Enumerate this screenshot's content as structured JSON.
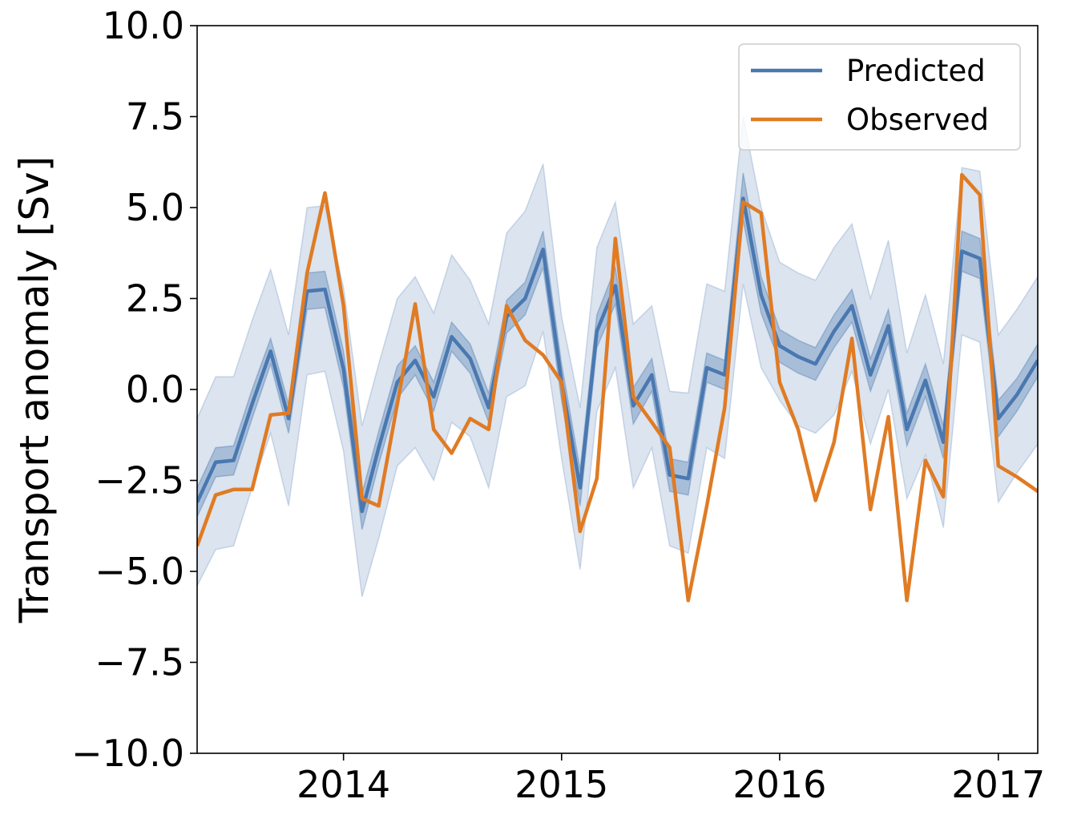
{
  "chart_data": {
    "type": "line",
    "title": "",
    "xlabel": "",
    "ylabel": "Transport anomaly [Sv]",
    "xlim": [
      "2013-05-01",
      "2017-03-08"
    ],
    "ylim": [
      -10,
      10
    ],
    "x_ticks": [
      "2014",
      "2015",
      "2016",
      "2017"
    ],
    "x_tick_dates": [
      "2014-01-01",
      "2015-01-01",
      "2016-01-01",
      "2017-01-01"
    ],
    "y_ticks": [
      10.0,
      7.5,
      5.0,
      2.5,
      0.0,
      -2.5,
      -5.0,
      -7.5,
      -10.0
    ],
    "y_tick_labels": [
      "10.0",
      "7.5",
      "5.0",
      "2.5",
      "0.0",
      "−2.5",
      "−5.0",
      "−7.5",
      "−10.0"
    ],
    "grid": false,
    "legend_position": "top-right",
    "x": [
      "2013-05-01",
      "2013-06-01",
      "2013-07-01",
      "2013-08-01",
      "2013-09-01",
      "2013-10-01",
      "2013-11-01",
      "2013-12-01",
      "2014-01-01",
      "2014-02-01",
      "2014-03-01",
      "2014-04-01",
      "2014-05-01",
      "2014-06-01",
      "2014-07-01",
      "2014-08-01",
      "2014-09-01",
      "2014-10-01",
      "2014-11-01",
      "2014-12-01",
      "2015-01-01",
      "2015-02-01",
      "2015-03-01",
      "2015-04-01",
      "2015-05-01",
      "2015-06-01",
      "2015-07-01",
      "2015-08-01",
      "2015-09-01",
      "2015-10-01",
      "2015-11-01",
      "2015-12-01",
      "2016-01-01",
      "2016-02-01",
      "2016-03-01",
      "2016-04-01",
      "2016-05-01",
      "2016-06-01",
      "2016-07-01",
      "2016-08-01",
      "2016-09-01",
      "2016-10-01",
      "2016-11-01",
      "2016-12-01",
      "2017-01-01",
      "2017-02-01",
      "2017-03-08"
    ],
    "series": [
      {
        "name": "Predicted",
        "color": "#4a78b0",
        "values": [
          -3.1,
          -2.0,
          -1.95,
          -0.4,
          1.05,
          -0.8,
          2.7,
          2.75,
          0.55,
          -3.35,
          -1.6,
          0.2,
          0.8,
          -0.2,
          1.45,
          0.85,
          -0.5,
          2.0,
          2.5,
          3.85,
          0.2,
          -2.7,
          1.6,
          2.85,
          -0.45,
          0.4,
          -2.35,
          -2.45,
          0.6,
          0.4,
          5.25,
          2.6,
          1.2,
          0.9,
          0.7,
          1.6,
          2.3,
          0.4,
          1.75,
          -1.1,
          0.25,
          -1.45,
          3.8,
          3.6,
          -0.8,
          -0.15,
          0.8
        ],
        "inner_band": {
          "lower": [
            -3.5,
            -2.4,
            -2.35,
            -0.8,
            0.7,
            -1.2,
            2.2,
            2.25,
            0.05,
            -3.85,
            -2.05,
            -0.25,
            0.4,
            -0.6,
            1.05,
            0.45,
            -0.9,
            1.55,
            2.05,
            3.35,
            -0.3,
            -3.2,
            1.15,
            2.35,
            -0.95,
            -0.05,
            -2.8,
            -2.9,
            0.2,
            0.0,
            4.65,
            2.1,
            0.75,
            0.45,
            0.25,
            1.15,
            1.85,
            -0.05,
            1.3,
            -1.55,
            -0.2,
            -1.9,
            3.25,
            3.05,
            -1.3,
            -0.6,
            0.35
          ],
          "upper": [
            -2.7,
            -1.6,
            -1.55,
            0.0,
            1.4,
            -0.4,
            3.2,
            3.25,
            1.05,
            -2.85,
            -1.15,
            0.65,
            1.2,
            0.2,
            1.85,
            1.25,
            -0.1,
            2.45,
            2.95,
            4.35,
            0.7,
            -2.2,
            2.05,
            3.35,
            0.05,
            0.85,
            -1.9,
            -2.0,
            1.0,
            0.8,
            5.95,
            3.1,
            1.65,
            1.35,
            1.15,
            2.05,
            2.75,
            0.85,
            2.2,
            -0.65,
            0.7,
            -1.0,
            4.35,
            4.15,
            -0.3,
            0.3,
            1.25
          ]
        },
        "outer_band": {
          "lower": [
            -5.4,
            -4.4,
            -4.3,
            -2.7,
            -1.2,
            -3.2,
            0.4,
            0.5,
            -1.7,
            -5.7,
            -4.1,
            -2.1,
            -1.6,
            -2.5,
            -0.9,
            -1.3,
            -2.7,
            -0.2,
            0.1,
            1.6,
            -1.9,
            -4.95,
            -0.6,
            0.6,
            -2.7,
            -1.6,
            -4.3,
            -4.5,
            -1.6,
            -1.9,
            2.9,
            0.6,
            -0.3,
            -1.0,
            -1.2,
            -0.7,
            0.5,
            -1.5,
            0.0,
            -3.0,
            -1.8,
            -3.8,
            1.5,
            1.3,
            -3.1,
            -2.3,
            -1.5
          ],
          "upper": [
            -0.8,
            0.35,
            0.35,
            1.9,
            3.3,
            1.5,
            5.0,
            5.05,
            2.8,
            -1.0,
            0.7,
            2.5,
            3.1,
            2.1,
            3.7,
            3.0,
            1.8,
            4.3,
            4.9,
            6.2,
            2.0,
            -0.5,
            3.9,
            5.15,
            1.8,
            2.3,
            -0.05,
            -0.1,
            2.9,
            2.7,
            7.5,
            5.0,
            3.5,
            3.2,
            3.0,
            3.9,
            4.55,
            2.5,
            4.1,
            1.0,
            2.6,
            0.7,
            6.1,
            6.0,
            1.5,
            2.2,
            3.1
          ]
        }
      },
      {
        "name": "Observed",
        "color": "#e07b24",
        "values": [
          -4.3,
          -2.9,
          -2.75,
          -2.75,
          -0.7,
          -0.65,
          3.2,
          5.4,
          2.3,
          -3.0,
          -3.2,
          -0.4,
          2.35,
          -1.1,
          -1.75,
          -0.8,
          -1.1,
          2.3,
          1.35,
          0.95,
          0.2,
          -3.9,
          -2.45,
          4.15,
          -0.2,
          -0.9,
          -1.6,
          -5.8,
          -3.2,
          -0.5,
          5.15,
          4.85,
          0.2,
          -1.1,
          -3.05,
          -1.45,
          1.4,
          -3.3,
          -0.75,
          -5.8,
          -1.95,
          -2.95,
          5.9,
          5.35,
          -2.1,
          -2.4,
          -2.8
        ]
      }
    ],
    "legend": [
      {
        "label": "Predicted",
        "color": "#4a78b0"
      },
      {
        "label": "Observed",
        "color": "#e07b24"
      }
    ]
  }
}
